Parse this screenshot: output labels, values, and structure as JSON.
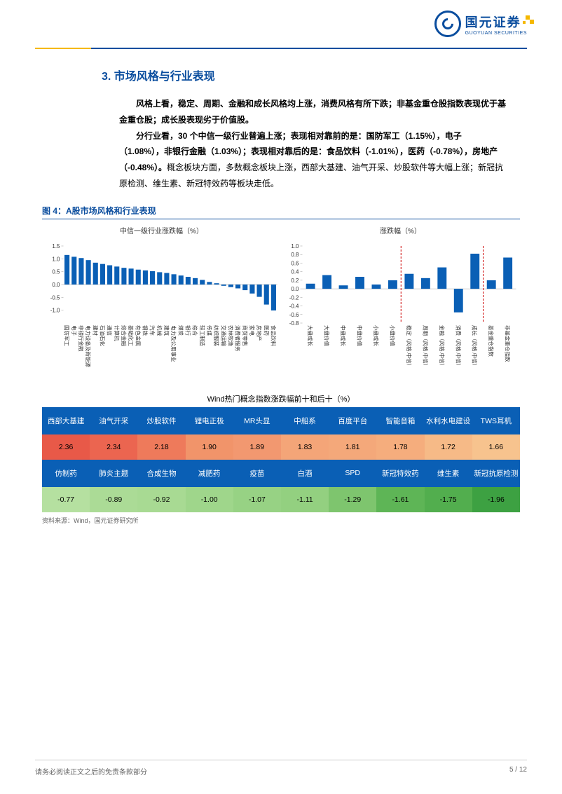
{
  "logo": {
    "cn": "国元证券",
    "en": "GUOYUAN SECURITIES"
  },
  "section": {
    "num": "3.",
    "title": "市场风格与行业表现"
  },
  "para1": "风格上看，稳定、周期、金融和成长风格均上涨，消费风格有所下跌；非基金重仓股指数表现优于基金重仓股；成长股表现劣于价值股。",
  "para2_prefix": "分行业看，30 个中信一级行业普遍上涨；表现相对靠前的是：国防军工（1.15%），电子（1.08%），非银行金融（1.03%）；表现相对靠后的是：食品饮料（-1.01%），医药（-0.78%），房地产（-0.48%）。",
  "para2_suffix": "概念板块方面，多数概念板块上涨，西部大基建、油气开采、炒股软件等大幅上涨；新冠抗原检测、维生素、新冠特效药等板块走低。",
  "fig": {
    "title": "图 4：A股市场风格和行业表现",
    "chart1_title": "中信一级行业涨跌幅（%）",
    "chart2_title": "涨跌幅（%）",
    "source": "资料来源：Wind，国元证券研究所"
  },
  "chart1": {
    "ylim": [
      -1.5,
      1.5
    ],
    "yticks": [
      -1.0,
      -0.5,
      0,
      0.5,
      1.0,
      1.5
    ],
    "labels": [
      "国防军工",
      "电子",
      "非银行金融",
      "电力设备及新能源",
      "建材",
      "石油石化",
      "通信",
      "计算机",
      "综合金融",
      "基础化工",
      "有色金属",
      "钢铁",
      "汽车",
      "机械",
      "建筑",
      "电力及公用事业",
      "煤炭",
      "银行",
      "综合",
      "轻工制造",
      "传媒",
      "纺织服装",
      "交通运输",
      "农林牧渔",
      "消费者服务",
      "商贸零售",
      "家电",
      "房地产",
      "医药",
      "食品饮料"
    ],
    "values": [
      1.15,
      1.08,
      1.03,
      0.95,
      0.85,
      0.8,
      0.75,
      0.7,
      0.65,
      0.62,
      0.58,
      0.55,
      0.52,
      0.48,
      0.45,
      0.4,
      0.35,
      0.3,
      0.25,
      0.18,
      0.1,
      0.05,
      -0.05,
      -0.1,
      -0.15,
      -0.22,
      -0.35,
      -0.48,
      -0.78,
      -1.01
    ],
    "bar_color": "#0a5fb5"
  },
  "chart2": {
    "ylim": [
      -0.8,
      1.0
    ],
    "yticks": [
      -0.8,
      -0.6,
      -0.4,
      -0.2,
      0,
      0.2,
      0.4,
      0.6,
      0.8,
      1.0
    ],
    "labels": [
      "大盘成长",
      "大盘价值",
      "中盘成长",
      "中盘价值",
      "小盘成长",
      "小盘价值",
      "稳定（风格.中信）",
      "周期（风格.中信）",
      "金融（风格.中信）",
      "消费（风格.中信）",
      "成长（风格.中信）",
      "基金重仓指数",
      "非基金重仓指数"
    ],
    "values": [
      0.12,
      0.32,
      0.08,
      0.28,
      0.1,
      0.2,
      0.35,
      0.25,
      0.5,
      -0.55,
      0.82,
      0.2,
      0.73
    ],
    "dividers": [
      6,
      11
    ],
    "bar_color": "#0a5fb5"
  },
  "table": {
    "title": "Wind热门概念指数涨跌幅前十和后十（%）",
    "top_labels": [
      "西部大基建",
      "油气开采",
      "炒股软件",
      "锂电正极",
      "MR头显",
      "中船系",
      "百度平台",
      "智能音箱",
      "水利水电建设",
      "TWS耳机"
    ],
    "top_values": [
      "2.36",
      "2.34",
      "2.18",
      "1.90",
      "1.89",
      "1.83",
      "1.81",
      "1.78",
      "1.72",
      "1.66"
    ],
    "top_colors": [
      "#e85948",
      "#eb6550",
      "#ee7a5b",
      "#f1946a",
      "#f29870",
      "#f4a578",
      "#f4a87a",
      "#f5ad7d",
      "#f6ba87",
      "#f7c38e"
    ],
    "bot_labels": [
      "仿制药",
      "肺炎主题",
      "合成生物",
      "减肥药",
      "疫苗",
      "白酒",
      "SPD",
      "新冠特效药",
      "维生素",
      "新冠抗原检测"
    ],
    "bot_values": [
      "-0.77",
      "-0.89",
      "-0.92",
      "-1.00",
      "-1.07",
      "-1.11",
      "-1.29",
      "-1.61",
      "-1.75",
      "-1.96"
    ],
    "bot_colors": [
      "#b5e0a0",
      "#abdb96",
      "#a8da93",
      "#9fd68b",
      "#97d284",
      "#93d080",
      "#7ec56e",
      "#5eb556",
      "#52ae4e",
      "#3da142"
    ],
    "hdr_color": "#0a5fb5"
  },
  "footer": {
    "left": "请务必阅读正文之后的免责条款部分",
    "right": "5 / 12"
  }
}
